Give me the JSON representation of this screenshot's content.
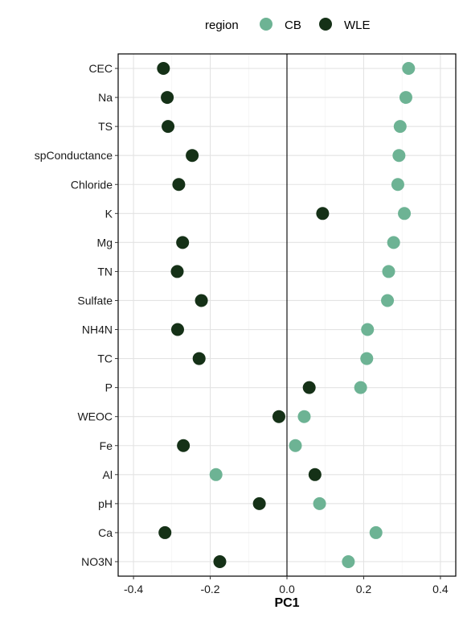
{
  "chart_data": {
    "type": "scatter",
    "title": "",
    "xlabel": "PC1",
    "ylabel": "",
    "xlim": [
      -0.44,
      0.44
    ],
    "xticks": [
      -0.4,
      -0.2,
      0.0,
      0.2,
      0.4
    ],
    "xtick_labels": [
      "-0.4",
      "-0.2",
      "0.0",
      "0.2",
      "0.4"
    ],
    "grid": true,
    "reference_line_x": 0,
    "legend": {
      "title": "region",
      "placement": "top",
      "entries": [
        "CB",
        "WLE"
      ]
    },
    "categories": [
      "CEC",
      "Na",
      "TS",
      "spConductance",
      "Chloride",
      "K",
      "Mg",
      "TN",
      "Sulfate",
      "NH4N",
      "TC",
      "P",
      "WEOC",
      "Fe",
      "Al",
      "pH",
      "Ca",
      "NO3N"
    ],
    "series": [
      {
        "name": "CB",
        "color": "#6db394",
        "values": [
          0.317,
          0.31,
          0.295,
          0.292,
          0.289,
          0.306,
          0.278,
          0.265,
          0.262,
          0.21,
          0.208,
          0.192,
          0.045,
          0.022,
          -0.185,
          0.085,
          0.232,
          0.16
        ]
      },
      {
        "name": "WLE",
        "color": "#153117",
        "values": [
          -0.322,
          -0.312,
          -0.31,
          -0.247,
          -0.282,
          0.093,
          -0.272,
          -0.286,
          -0.223,
          -0.285,
          -0.229,
          0.058,
          -0.021,
          -0.27,
          0.073,
          -0.072,
          -0.318,
          -0.175
        ]
      }
    ]
  }
}
